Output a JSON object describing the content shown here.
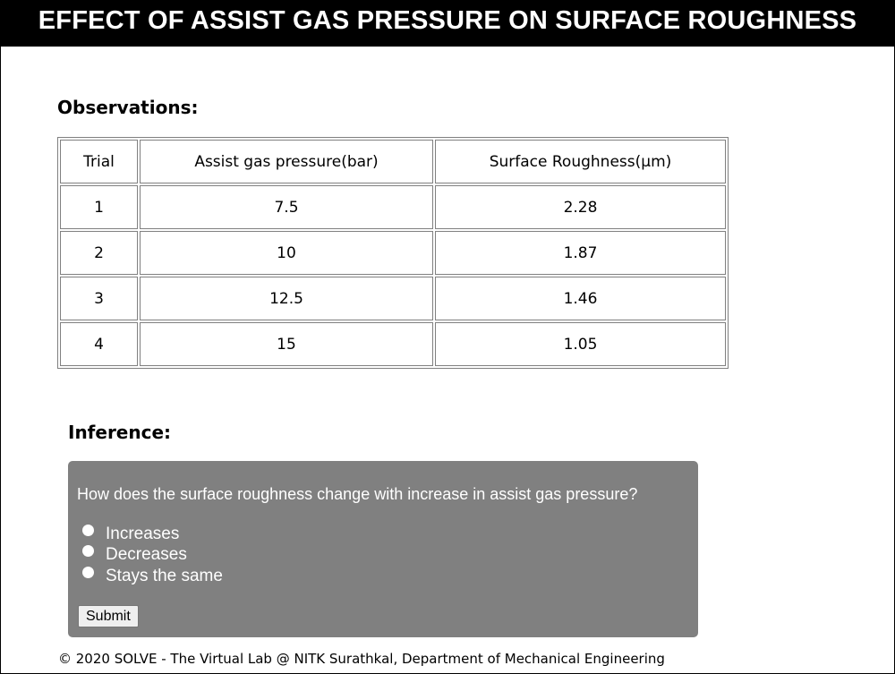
{
  "page": {
    "title": "EFFECT OF ASSIST GAS PRESSURE ON SURFACE ROUGHNESS"
  },
  "observations": {
    "heading": "Observations:",
    "columns": [
      "Trial",
      "Assist gas pressure(bar)",
      "Surface Roughness(μm)"
    ],
    "rows": [
      [
        "1",
        "7.5",
        "2.28"
      ],
      [
        "2",
        "10",
        "1.87"
      ],
      [
        "3",
        "12.5",
        "1.46"
      ],
      [
        "4",
        "15",
        "1.05"
      ]
    ]
  },
  "inference": {
    "heading": "Inference:",
    "question": "How does the surface roughness change with increase in assist gas pressure?",
    "options": [
      "Increases",
      "Decreases",
      "Stays the same"
    ],
    "submit_label": "Submit"
  },
  "footer": {
    "text": "© 2020 SOLVE - The Virtual Lab @ NITK Surathkal, Department of Mechanical Engineering"
  },
  "colors": {
    "title_bar_bg": "#000000",
    "quiz_box_bg": "#808080"
  }
}
